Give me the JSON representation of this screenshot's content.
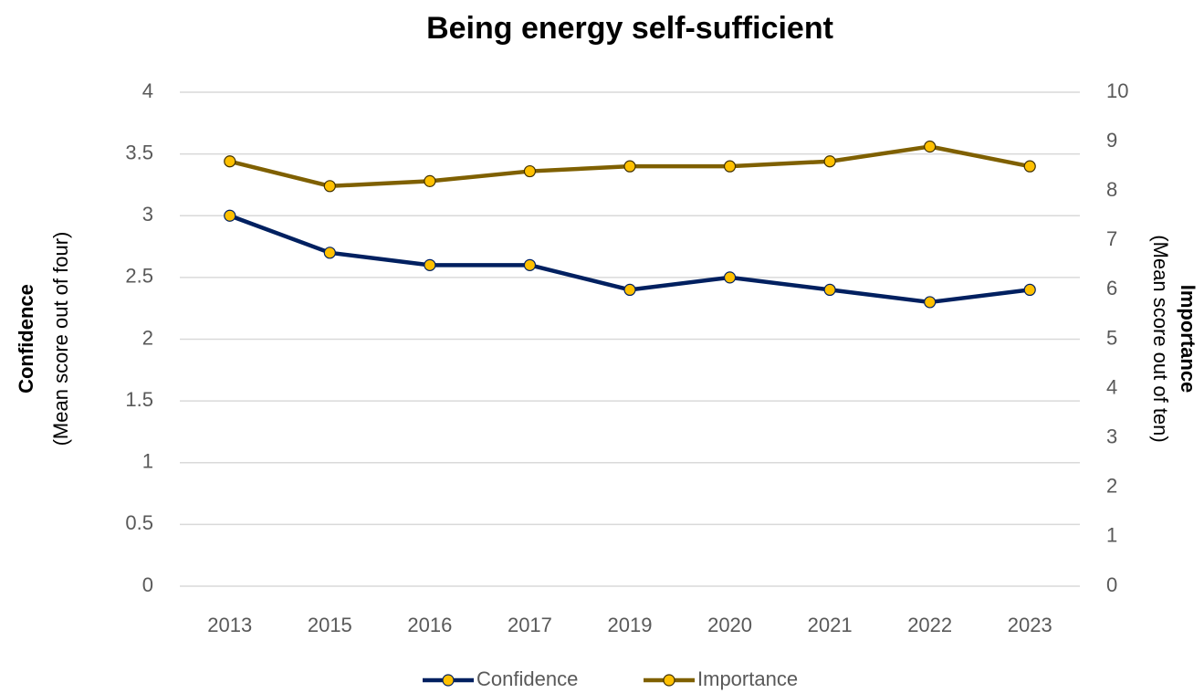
{
  "chart_data": {
    "type": "line",
    "title": "Being energy self-sufficient",
    "categories": [
      "2013",
      "2015",
      "2016",
      "2017",
      "2019",
      "2020",
      "2021",
      "2022",
      "2023"
    ],
    "series": [
      {
        "name": "Confidence",
        "color": "#002060",
        "marker_color": "#ffc000",
        "values": [
          3.0,
          2.7,
          2.6,
          2.6,
          2.4,
          2.5,
          2.4,
          2.3,
          2.4
        ]
      },
      {
        "name": "Importance",
        "color": "#7f6000",
        "marker_color": "#ffc000",
        "axis": "y2",
        "values": [
          8.6,
          8.1,
          8.2,
          8.4,
          8.5,
          8.5,
          8.6,
          8.9,
          8.5
        ]
      }
    ],
    "ylabel": {
      "title": "Confidence",
      "subtitle": "(Mean score out of four)"
    },
    "y2label": {
      "title": "Importance",
      "subtitle": "(Mean score out of ten)"
    },
    "ylim": [
      0,
      4
    ],
    "yticks": [
      0,
      0.5,
      1,
      1.5,
      2,
      2.5,
      3,
      3.5,
      4
    ],
    "y2lim": [
      0,
      10
    ],
    "y2ticks": [
      0,
      1,
      2,
      3,
      4,
      5,
      6,
      7,
      8,
      9,
      10
    ],
    "grid": true,
    "legend": "bottom"
  }
}
